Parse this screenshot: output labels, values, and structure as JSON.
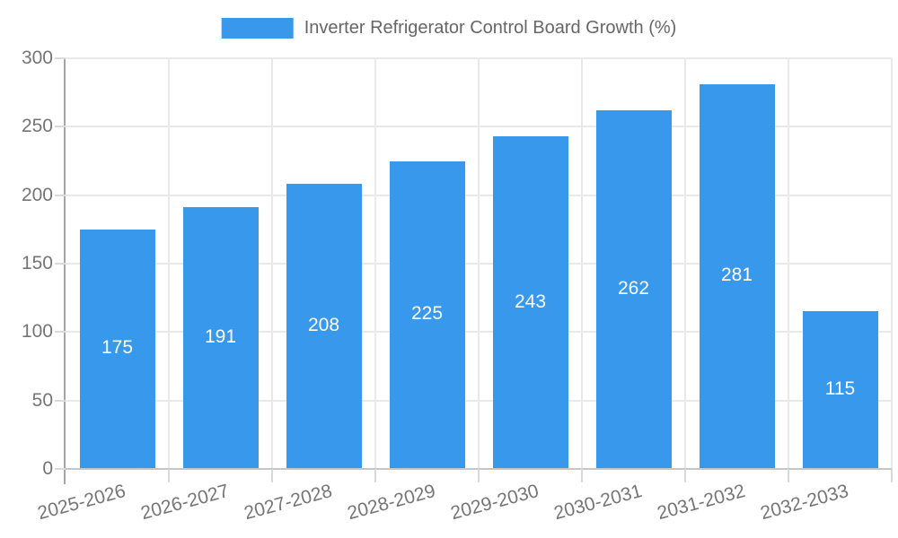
{
  "legend": {
    "label": "Inverter Refrigerator Control Board Growth (%)"
  },
  "colors": {
    "bar": "#3898ec",
    "grid": "#e9e9e9",
    "axis_line": "#a6a6a6",
    "zero_line": "#c6c6c6",
    "tick_mark": "#d9d9d9",
    "axis_text": "#757575",
    "legend_text": "#666666",
    "bar_label_text": "#ffffff",
    "background": "#ffffff"
  },
  "chart_data": {
    "type": "bar",
    "title": "Inverter Refrigerator Control Board Growth (%)",
    "categories": [
      "2025-2026",
      "2026-2027",
      "2027-2028",
      "2028-2029",
      "2029-2030",
      "2030-2031",
      "2031-2032",
      "2032-2033"
    ],
    "values": [
      175,
      191,
      208,
      225,
      243,
      262,
      281,
      115
    ],
    "series": [
      {
        "name": "Inverter Refrigerator Control Board Growth (%)",
        "values": [
          175,
          191,
          208,
          225,
          243,
          262,
          281,
          115
        ]
      }
    ],
    "xlabel": "",
    "ylabel": "",
    "ylim": [
      0,
      300
    ],
    "yticks": [
      0,
      50,
      100,
      150,
      200,
      250,
      300
    ],
    "grid": true,
    "legend_position": "top",
    "bar_labels": "centered inside bars",
    "x_tick_rotation_deg": -15
  }
}
